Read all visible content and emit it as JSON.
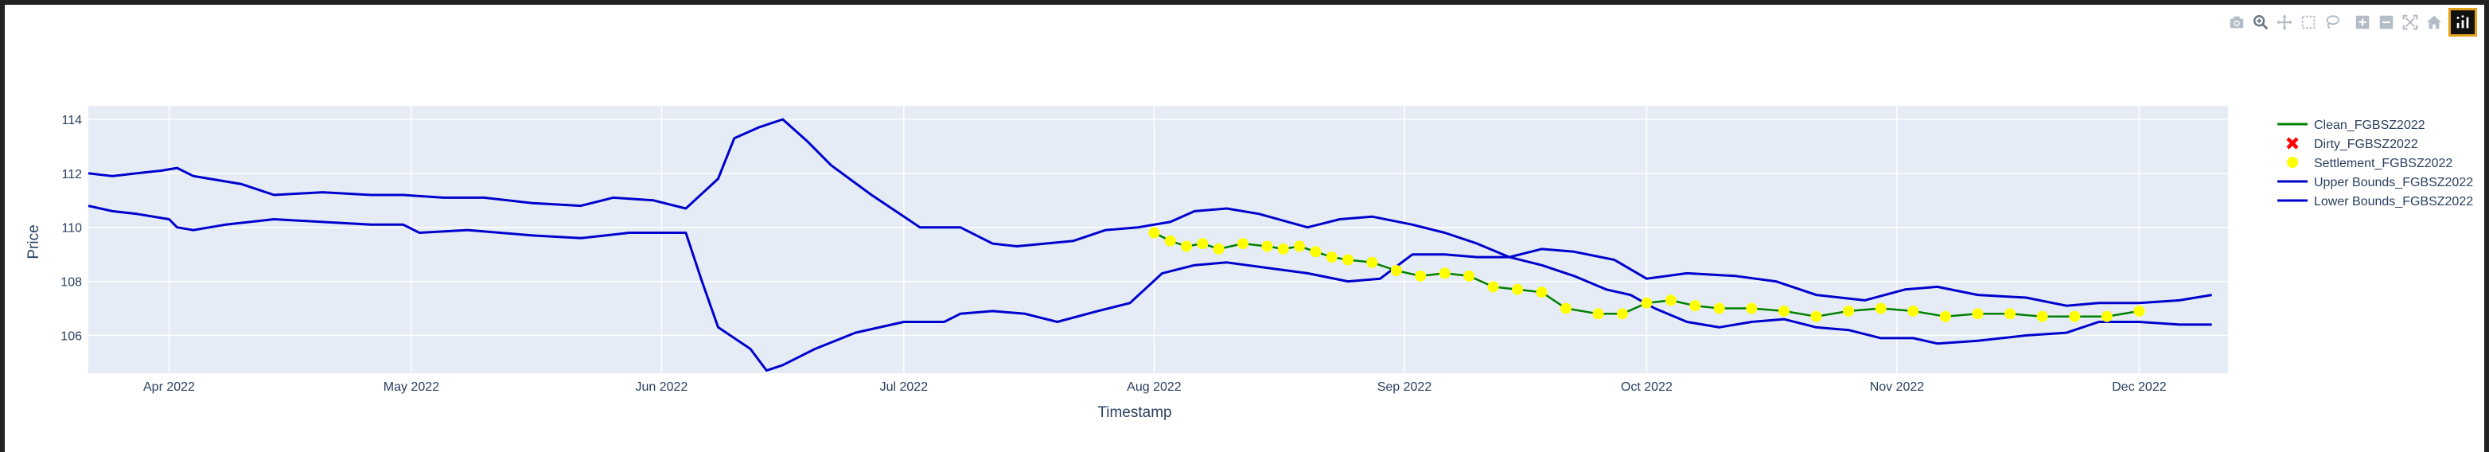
{
  "modebar": {
    "buttons": [
      "camera-icon",
      "zoom-icon",
      "pan-icon",
      "box-select-icon",
      "lasso-icon",
      "zoom-in-icon",
      "zoom-out-icon",
      "autoscale-icon",
      "reset-axes-icon",
      "plotly-logo-icon"
    ]
  },
  "colors": {
    "plot_bg": "#e5ecf6",
    "grid": "#ffffff",
    "clean": "#008000",
    "dirty": "#ff0000",
    "settlement": "#ffff00",
    "bounds": "#0000cd",
    "text": "#2a3f5f"
  },
  "chart_data": {
    "type": "line",
    "xlabel": "Timestamp",
    "ylabel": "Price",
    "x_range": [
      "2022-03-22",
      "2022-12-12"
    ],
    "ylim": [
      104.6,
      114.5
    ],
    "x_ticks": [
      {
        "date": "2022-04-01",
        "label": "Apr 2022"
      },
      {
        "date": "2022-05-01",
        "label": "May 2022"
      },
      {
        "date": "2022-06-01",
        "label": "Jun 2022"
      },
      {
        "date": "2022-07-01",
        "label": "Jul 2022"
      },
      {
        "date": "2022-08-01",
        "label": "Aug 2022"
      },
      {
        "date": "2022-09-01",
        "label": "Sep 2022"
      },
      {
        "date": "2022-10-01",
        "label": "Oct 2022"
      },
      {
        "date": "2022-11-01",
        "label": "Nov 2022"
      },
      {
        "date": "2022-12-01",
        "label": "Dec 2022"
      }
    ],
    "y_ticks": [
      106,
      108,
      110,
      112,
      114
    ],
    "grid": true,
    "legend_position": "top-right",
    "series": [
      {
        "name": "Clean_FGBSZ2022",
        "mode": "line",
        "color": "#008000",
        "points": [
          [
            "2022-08-01",
            109.8
          ],
          [
            "2022-08-03",
            109.5
          ],
          [
            "2022-08-05",
            109.3
          ],
          [
            "2022-08-07",
            109.4
          ],
          [
            "2022-08-09",
            109.2
          ],
          [
            "2022-08-12",
            109.4
          ],
          [
            "2022-08-15",
            109.3
          ],
          [
            "2022-08-17",
            109.2
          ],
          [
            "2022-08-19",
            109.3
          ],
          [
            "2022-08-21",
            109.1
          ],
          [
            "2022-08-23",
            108.9
          ],
          [
            "2022-08-25",
            108.8
          ],
          [
            "2022-08-28",
            108.7
          ],
          [
            "2022-08-31",
            108.4
          ],
          [
            "2022-09-03",
            108.2
          ],
          [
            "2022-09-06",
            108.3
          ],
          [
            "2022-09-09",
            108.2
          ],
          [
            "2022-09-12",
            107.8
          ],
          [
            "2022-09-15",
            107.7
          ],
          [
            "2022-09-18",
            107.6
          ],
          [
            "2022-09-21",
            107.0
          ],
          [
            "2022-09-25",
            106.8
          ],
          [
            "2022-09-28",
            106.8
          ],
          [
            "2022-10-01",
            107.2
          ],
          [
            "2022-10-04",
            107.3
          ],
          [
            "2022-10-07",
            107.1
          ],
          [
            "2022-10-10",
            107.0
          ],
          [
            "2022-10-14",
            107.0
          ],
          [
            "2022-10-18",
            106.9
          ],
          [
            "2022-10-22",
            106.7
          ],
          [
            "2022-10-26",
            106.9
          ],
          [
            "2022-10-30",
            107.0
          ],
          [
            "2022-11-03",
            106.9
          ],
          [
            "2022-11-07",
            106.7
          ],
          [
            "2022-11-11",
            106.8
          ],
          [
            "2022-11-15",
            106.8
          ],
          [
            "2022-11-19",
            106.7
          ],
          [
            "2022-11-23",
            106.7
          ],
          [
            "2022-11-27",
            106.7
          ],
          [
            "2022-12-01",
            106.9
          ]
        ]
      },
      {
        "name": "Dirty_FGBSZ2022",
        "mode": "markers-x",
        "color": "#ff0000",
        "points": []
      },
      {
        "name": "Settlement_FGBSZ2022",
        "mode": "markers",
        "color": "#ffff00",
        "points": [
          [
            "2022-08-01",
            109.8
          ],
          [
            "2022-08-03",
            109.5
          ],
          [
            "2022-08-05",
            109.3
          ],
          [
            "2022-08-07",
            109.4
          ],
          [
            "2022-08-09",
            109.2
          ],
          [
            "2022-08-12",
            109.4
          ],
          [
            "2022-08-15",
            109.3
          ],
          [
            "2022-08-17",
            109.2
          ],
          [
            "2022-08-19",
            109.3
          ],
          [
            "2022-08-21",
            109.1
          ],
          [
            "2022-08-23",
            108.9
          ],
          [
            "2022-08-25",
            108.8
          ],
          [
            "2022-08-28",
            108.7
          ],
          [
            "2022-08-31",
            108.4
          ],
          [
            "2022-09-03",
            108.2
          ],
          [
            "2022-09-06",
            108.3
          ],
          [
            "2022-09-09",
            108.2
          ],
          [
            "2022-09-12",
            107.8
          ],
          [
            "2022-09-15",
            107.7
          ],
          [
            "2022-09-18",
            107.6
          ],
          [
            "2022-09-21",
            107.0
          ],
          [
            "2022-09-25",
            106.8
          ],
          [
            "2022-09-28",
            106.8
          ],
          [
            "2022-10-01",
            107.2
          ],
          [
            "2022-10-04",
            107.3
          ],
          [
            "2022-10-07",
            107.1
          ],
          [
            "2022-10-10",
            107.0
          ],
          [
            "2022-10-14",
            107.0
          ],
          [
            "2022-10-18",
            106.9
          ],
          [
            "2022-10-22",
            106.7
          ],
          [
            "2022-10-26",
            106.9
          ],
          [
            "2022-10-30",
            107.0
          ],
          [
            "2022-11-03",
            106.9
          ],
          [
            "2022-11-07",
            106.7
          ],
          [
            "2022-11-11",
            106.8
          ],
          [
            "2022-11-15",
            106.8
          ],
          [
            "2022-11-19",
            106.7
          ],
          [
            "2022-11-23",
            106.7
          ],
          [
            "2022-11-27",
            106.7
          ],
          [
            "2022-12-01",
            106.9
          ]
        ]
      },
      {
        "name": "Upper Bounds_FGBSZ2022",
        "mode": "line",
        "color": "#0000cd",
        "points": [
          [
            "2022-03-22",
            112.0
          ],
          [
            "2022-03-25",
            111.9
          ],
          [
            "2022-03-28",
            112.0
          ],
          [
            "2022-03-31",
            112.1
          ],
          [
            "2022-04-02",
            112.2
          ],
          [
            "2022-04-04",
            111.9
          ],
          [
            "2022-04-10",
            111.6
          ],
          [
            "2022-04-14",
            111.2
          ],
          [
            "2022-04-20",
            111.3
          ],
          [
            "2022-04-26",
            111.2
          ],
          [
            "2022-04-30",
            111.2
          ],
          [
            "2022-05-05",
            111.1
          ],
          [
            "2022-05-10",
            111.1
          ],
          [
            "2022-05-16",
            110.9
          ],
          [
            "2022-05-22",
            110.8
          ],
          [
            "2022-05-26",
            111.1
          ],
          [
            "2022-05-31",
            111.0
          ],
          [
            "2022-06-04",
            110.7
          ],
          [
            "2022-06-08",
            111.8
          ],
          [
            "2022-06-10",
            113.3
          ],
          [
            "2022-06-13",
            113.7
          ],
          [
            "2022-06-16",
            114.0
          ],
          [
            "2022-06-19",
            113.2
          ],
          [
            "2022-06-22",
            112.3
          ],
          [
            "2022-06-27",
            111.2
          ],
          [
            "2022-07-03",
            110.0
          ],
          [
            "2022-07-08",
            110.0
          ],
          [
            "2022-07-12",
            109.4
          ],
          [
            "2022-07-15",
            109.3
          ],
          [
            "2022-07-22",
            109.5
          ],
          [
            "2022-07-26",
            109.9
          ],
          [
            "2022-07-30",
            110.0
          ],
          [
            "2022-08-03",
            110.2
          ],
          [
            "2022-08-06",
            110.6
          ],
          [
            "2022-08-10",
            110.7
          ],
          [
            "2022-08-14",
            110.5
          ],
          [
            "2022-08-20",
            110.0
          ],
          [
            "2022-08-24",
            110.3
          ],
          [
            "2022-08-28",
            110.4
          ],
          [
            "2022-09-02",
            110.1
          ],
          [
            "2022-09-06",
            109.8
          ],
          [
            "2022-09-10",
            109.4
          ],
          [
            "2022-09-14",
            108.9
          ],
          [
            "2022-09-18",
            109.2
          ],
          [
            "2022-09-22",
            109.1
          ],
          [
            "2022-09-27",
            108.8
          ],
          [
            "2022-10-01",
            108.1
          ],
          [
            "2022-10-06",
            108.3
          ],
          [
            "2022-10-12",
            108.2
          ],
          [
            "2022-10-17",
            108.0
          ],
          [
            "2022-10-22",
            107.5
          ],
          [
            "2022-10-28",
            107.3
          ],
          [
            "2022-11-02",
            107.7
          ],
          [
            "2022-11-06",
            107.8
          ],
          [
            "2022-11-11",
            107.5
          ],
          [
            "2022-11-17",
            107.4
          ],
          [
            "2022-11-22",
            107.1
          ],
          [
            "2022-11-26",
            107.2
          ],
          [
            "2022-12-01",
            107.2
          ],
          [
            "2022-12-06",
            107.3
          ],
          [
            "2022-12-10",
            107.5
          ]
        ]
      },
      {
        "name": "Lower Bounds_FGBSZ2022",
        "mode": "line",
        "color": "#0000cd",
        "points": [
          [
            "2022-03-22",
            110.8
          ],
          [
            "2022-03-25",
            110.6
          ],
          [
            "2022-03-28",
            110.5
          ],
          [
            "2022-04-01",
            110.3
          ],
          [
            "2022-04-02",
            110.0
          ],
          [
            "2022-04-04",
            109.9
          ],
          [
            "2022-04-08",
            110.1
          ],
          [
            "2022-04-14",
            110.3
          ],
          [
            "2022-04-20",
            110.2
          ],
          [
            "2022-04-26",
            110.1
          ],
          [
            "2022-04-30",
            110.1
          ],
          [
            "2022-05-02",
            109.8
          ],
          [
            "2022-05-08",
            109.9
          ],
          [
            "2022-05-16",
            109.7
          ],
          [
            "2022-05-22",
            109.6
          ],
          [
            "2022-05-28",
            109.8
          ],
          [
            "2022-06-02",
            109.8
          ],
          [
            "2022-06-04",
            109.8
          ],
          [
            "2022-06-06",
            108.0
          ],
          [
            "2022-06-08",
            106.3
          ],
          [
            "2022-06-12",
            105.5
          ],
          [
            "2022-06-14",
            104.7
          ],
          [
            "2022-06-16",
            104.9
          ],
          [
            "2022-06-20",
            105.5
          ],
          [
            "2022-06-25",
            106.1
          ],
          [
            "2022-07-01",
            106.5
          ],
          [
            "2022-07-06",
            106.5
          ],
          [
            "2022-07-08",
            106.8
          ],
          [
            "2022-07-12",
            106.9
          ],
          [
            "2022-07-16",
            106.8
          ],
          [
            "2022-07-20",
            106.5
          ],
          [
            "2022-07-25",
            106.9
          ],
          [
            "2022-07-29",
            107.2
          ],
          [
            "2022-08-02",
            108.3
          ],
          [
            "2022-08-06",
            108.6
          ],
          [
            "2022-08-10",
            108.7
          ],
          [
            "2022-08-15",
            108.5
          ],
          [
            "2022-08-20",
            108.3
          ],
          [
            "2022-08-25",
            108.0
          ],
          [
            "2022-08-29",
            108.1
          ],
          [
            "2022-09-02",
            109.0
          ],
          [
            "2022-09-06",
            109.0
          ],
          [
            "2022-09-10",
            108.9
          ],
          [
            "2022-09-14",
            108.9
          ],
          [
            "2022-09-18",
            108.6
          ],
          [
            "2022-09-22",
            108.2
          ],
          [
            "2022-09-26",
            107.7
          ],
          [
            "2022-09-29",
            107.5
          ],
          [
            "2022-10-02",
            107.0
          ],
          [
            "2022-10-06",
            106.5
          ],
          [
            "2022-10-10",
            106.3
          ],
          [
            "2022-10-14",
            106.5
          ],
          [
            "2022-10-18",
            106.6
          ],
          [
            "2022-10-22",
            106.3
          ],
          [
            "2022-10-26",
            106.2
          ],
          [
            "2022-10-30",
            105.9
          ],
          [
            "2022-11-03",
            105.9
          ],
          [
            "2022-11-06",
            105.7
          ],
          [
            "2022-11-11",
            105.8
          ],
          [
            "2022-11-17",
            106.0
          ],
          [
            "2022-11-22",
            106.1
          ],
          [
            "2022-11-26",
            106.5
          ],
          [
            "2022-12-01",
            106.5
          ],
          [
            "2022-12-06",
            106.4
          ],
          [
            "2022-12-10",
            106.4
          ]
        ]
      }
    ]
  }
}
